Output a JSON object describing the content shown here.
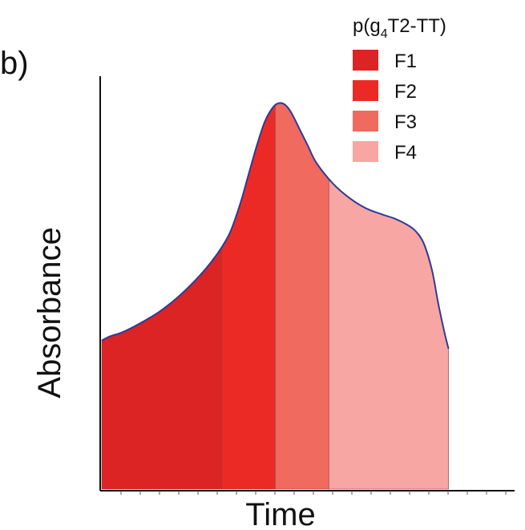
{
  "panel_label": "b)",
  "legend": {
    "title_prefix": "p(g",
    "title_subscript": "4",
    "title_suffix": "T2-TT)",
    "items": [
      {
        "label": "F1",
        "color": "#dc2424"
      },
      {
        "label": "F2",
        "color": "#ec2a25"
      },
      {
        "label": "F3",
        "color": "#f06a60"
      },
      {
        "label": "F4",
        "color": "#f7a6a3"
      }
    ]
  },
  "chart_data": {
    "type": "area",
    "xlabel": "Time",
    "ylabel": "Absorbance",
    "x_ticks": "unlabeled",
    "y_ticks": "none",
    "grid": false,
    "legend_position": "top-right",
    "trace_color": "#2e3a9a",
    "curve": {
      "x": [
        0.0,
        0.02,
        0.05,
        0.09,
        0.14,
        0.19,
        0.24,
        0.28,
        0.31,
        0.335,
        0.355,
        0.375,
        0.395,
        0.415,
        0.43,
        0.445,
        0.46,
        0.48,
        0.5,
        0.52,
        0.56,
        0.6,
        0.64,
        0.68,
        0.71,
        0.74,
        0.76,
        0.78,
        0.8,
        0.815,
        0.83,
        0.84
      ],
      "y": [
        0.36,
        0.37,
        0.38,
        0.4,
        0.43,
        0.47,
        0.52,
        0.57,
        0.62,
        0.69,
        0.76,
        0.83,
        0.89,
        0.925,
        0.935,
        0.93,
        0.91,
        0.87,
        0.83,
        0.79,
        0.74,
        0.705,
        0.68,
        0.665,
        0.655,
        0.64,
        0.625,
        0.595,
        0.53,
        0.45,
        0.38,
        0.34
      ]
    },
    "fractions": [
      {
        "name": "F1",
        "x_start": 0.0,
        "x_end": 0.29,
        "color": "#dc2424"
      },
      {
        "name": "F2",
        "x_start": 0.29,
        "x_end": 0.42,
        "color": "#ec2a25"
      },
      {
        "name": "F3",
        "x_start": 0.42,
        "x_end": 0.55,
        "color": "#f06a60"
      },
      {
        "name": "F4",
        "x_start": 0.55,
        "x_end": 0.84,
        "color": "#f7a6a3"
      }
    ]
  }
}
